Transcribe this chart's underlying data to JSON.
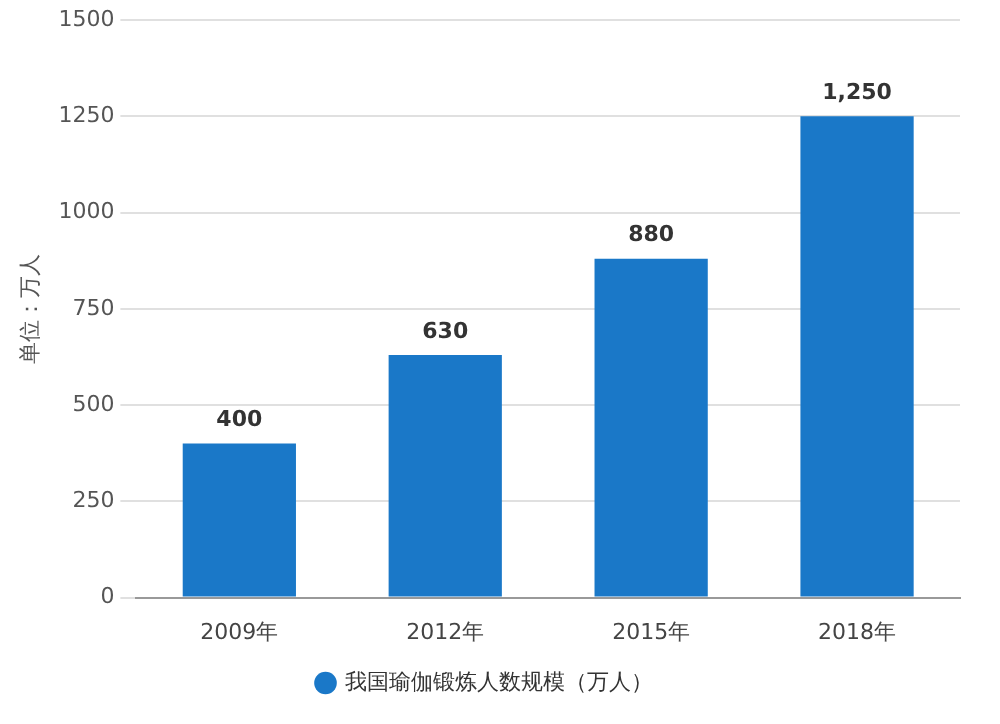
{
  "chart_data": {
    "type": "bar",
    "ylabel": "单位：万人",
    "categories": [
      "2009年",
      "2012年",
      "2015年",
      "2018年"
    ],
    "series": [
      {
        "name": "我国瑜伽锻炼人数规模（万人）",
        "color": "#1a78c8",
        "values": [
          400,
          630,
          880,
          1250
        ],
        "value_labels": [
          "400",
          "630",
          "880",
          "1,250"
        ]
      }
    ],
    "ylim": [
      0,
      1500
    ],
    "yticks": [
      0,
      250,
      500,
      750,
      1000,
      1250,
      1500
    ],
    "grid": "y",
    "legend": "bottom"
  }
}
